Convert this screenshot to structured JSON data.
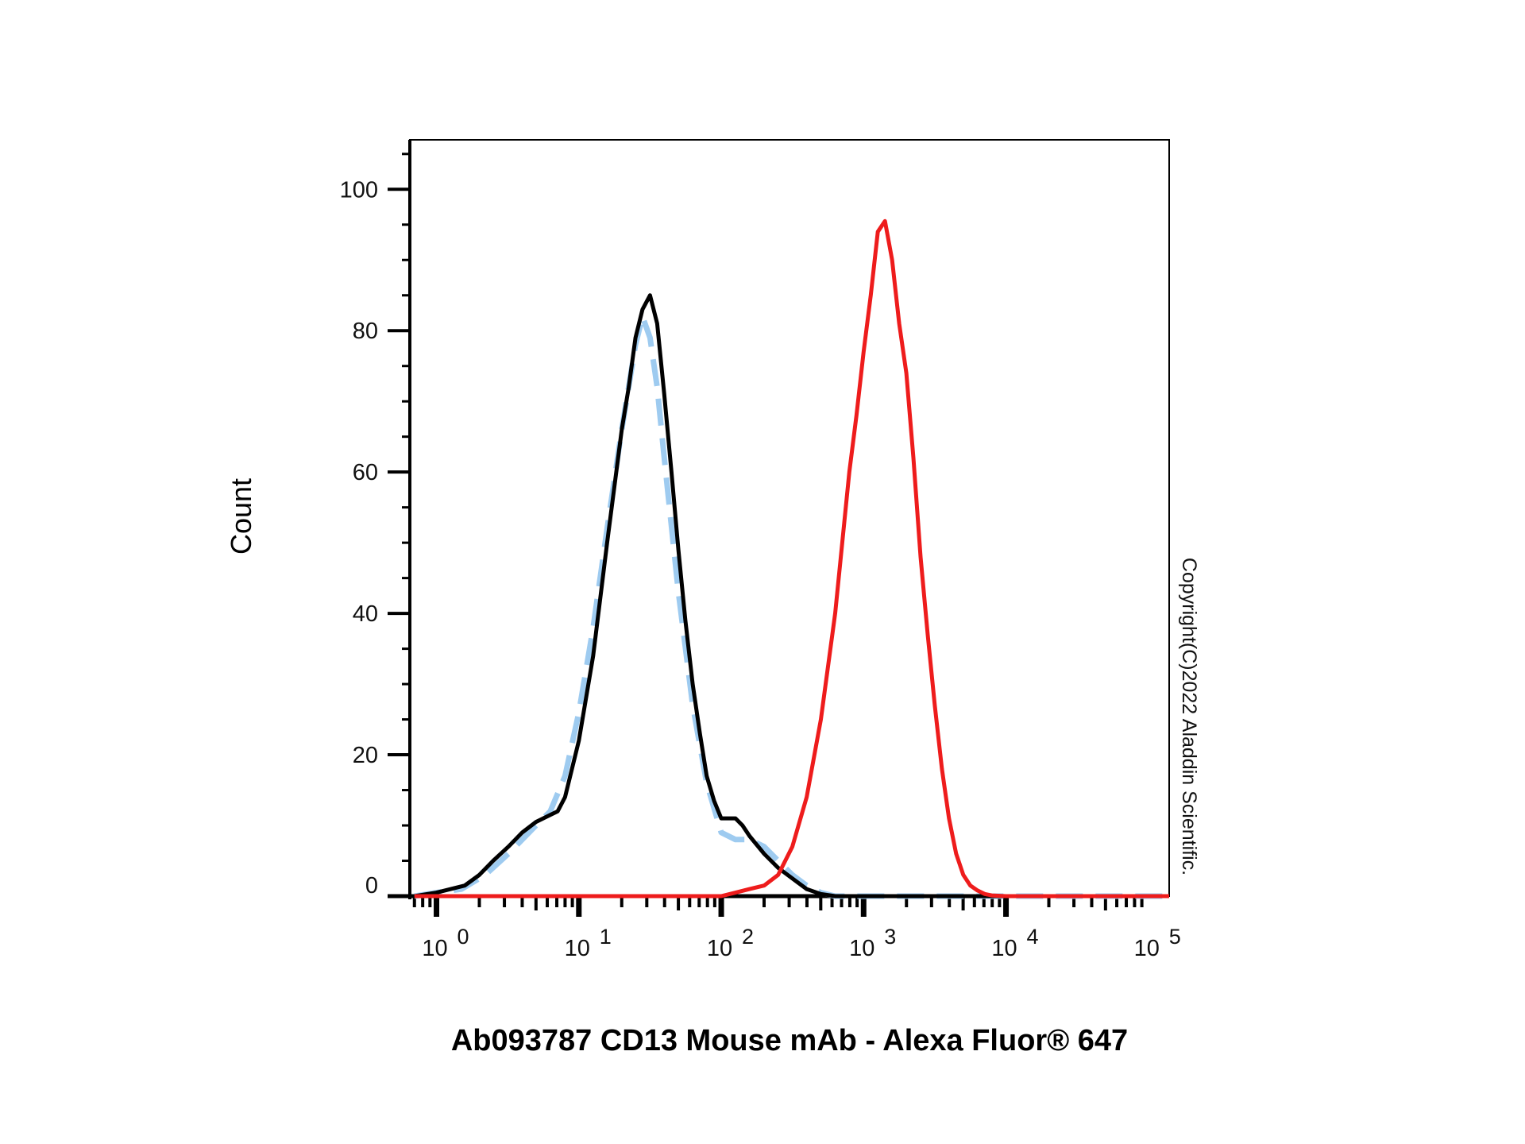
{
  "chart_data": {
    "type": "line",
    "title": "",
    "xlabel": "Ab093787 CD13 Mouse mAb - Alexa Fluor® 647",
    "ylabel": "Count",
    "x_scale": "log",
    "xlim": [
      0.65,
      140000
    ],
    "ylim": [
      0,
      107
    ],
    "x_ticks": [
      {
        "value": 1,
        "base": "10",
        "exp": "0"
      },
      {
        "value": 10,
        "base": "10",
        "exp": "1"
      },
      {
        "value": 100,
        "base": "10",
        "exp": "2"
      },
      {
        "value": 1000,
        "base": "10",
        "exp": "3"
      },
      {
        "value": 10000,
        "base": "10",
        "exp": "4"
      },
      {
        "value": 100000,
        "base": "10",
        "exp": "5"
      }
    ],
    "y_ticks": [
      {
        "value": 0,
        "label": "0"
      },
      {
        "value": 20,
        "label": "20"
      },
      {
        "value": 40,
        "label": "40"
      },
      {
        "value": 60,
        "label": "60"
      },
      {
        "value": 80,
        "label": "80"
      },
      {
        "value": 100,
        "label": "100"
      }
    ],
    "grid": false,
    "legend": "none",
    "series": [
      {
        "color": "#9ecbf0",
        "style": "dashed",
        "x": [
          0.7,
          1.0,
          1.5,
          2.2,
          3.2,
          5.0,
          6.3,
          8.0,
          10,
          12.6,
          15.8,
          20,
          25,
          28,
          31.6,
          35.5,
          39.8,
          50,
          63,
          79,
          100,
          126,
          158,
          200,
          251,
          316,
          398,
          501,
          631,
          1000,
          2000,
          5000,
          10000,
          140000
        ],
        "y": [
          0,
          0.5,
          1,
          3,
          6,
          10,
          12,
          17,
          26,
          38,
          52,
          66,
          78,
          82,
          79,
          72,
          62,
          43,
          27,
          16,
          9,
          8,
          8,
          7,
          5,
          3,
          1.5,
          0.5,
          0,
          0,
          0,
          0,
          0,
          0
        ]
      },
      {
        "color": "#000000",
        "style": "solid",
        "x": [
          0.7,
          1.0,
          1.26,
          1.58,
          2.0,
          2.5,
          3.2,
          4.0,
          5.0,
          6.3,
          7.1,
          8.0,
          10,
          12.6,
          15.8,
          20,
          22.4,
          25,
          28,
          31.6,
          35.5,
          39.8,
          44.7,
          50,
          56,
          63,
          70.8,
          79,
          89,
          100,
          112,
          126,
          141,
          158,
          200,
          251,
          316,
          398,
          501,
          631,
          1000,
          2000,
          5000,
          10000,
          140000
        ],
        "y": [
          0,
          0.5,
          1,
          1.5,
          3,
          5,
          7,
          9,
          10.5,
          11.5,
          12,
          14,
          22,
          34,
          50,
          66,
          72,
          79,
          83,
          85,
          81,
          71,
          60,
          49,
          39,
          30,
          23,
          17,
          13.5,
          11,
          11,
          11,
          10,
          8.5,
          6,
          4,
          2.5,
          1,
          0.3,
          0,
          0,
          0,
          0,
          0,
          0
        ]
      },
      {
        "color": "#ee1c1c",
        "style": "solid",
        "x": [
          0.7,
          10,
          100,
          126,
          158,
          200,
          251,
          316,
          398,
          501,
          631,
          708,
          794,
          891,
          1000,
          1122,
          1259,
          1413,
          1585,
          1778,
          1995,
          2239,
          2512,
          2818,
          3162,
          3548,
          3981,
          4467,
          5012,
          5623,
          6310,
          7079,
          7943,
          10000,
          15849,
          140000
        ],
        "y": [
          0,
          0,
          0,
          0.5,
          1,
          1.5,
          3,
          7,
          14,
          25,
          40,
          50,
          60,
          68,
          77,
          85,
          94,
          95.5,
          90,
          81,
          74,
          62,
          48,
          37,
          27,
          18,
          11,
          6,
          3,
          1.5,
          0.8,
          0.3,
          0.1,
          0,
          0,
          0
        ]
      }
    ],
    "watermark": "Copyright(C)2022 Aladdin Scientific."
  }
}
